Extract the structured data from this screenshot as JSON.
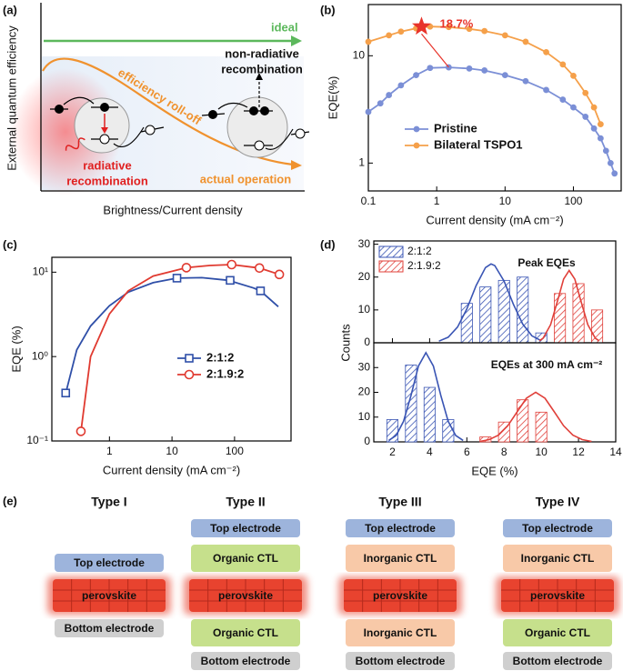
{
  "diagram_a": {
    "panel": "(a)",
    "y_label": "External quantum efficiency",
    "x_label": "Brightness/Current density",
    "ideal": "ideal",
    "roll_off": "efficiency roll-off",
    "actual_operation": "actual operation",
    "radiative": [
      "radiative",
      "recombination"
    ],
    "non_radiative": [
      "non-radiative",
      "recombination"
    ]
  },
  "chart_data": [
    {
      "panel": "(b)",
      "type": "line",
      "xscale": "log",
      "yscale": "log",
      "xlim": [
        0.1,
        500
      ],
      "ylim": [
        0.55,
        30
      ],
      "xticks": [
        0.1,
        1,
        10,
        100
      ],
      "yticks": [
        1,
        10
      ],
      "xlabel": "Current density (mA cm⁻²)",
      "ylabel": "EQE(%)",
      "legend": "lower left",
      "open_markers": false,
      "series": [
        {
          "name": "Pristine",
          "color": "#7b8fd6",
          "marker": "circle",
          "x": [
            0.1,
            0.15,
            0.2,
            0.3,
            0.5,
            0.8,
            1.5,
            3,
            5,
            10,
            20,
            40,
            70,
            100,
            150,
            200,
            250,
            300,
            350,
            400
          ],
          "values": [
            3.0,
            3.6,
            4.3,
            5.3,
            6.6,
            7.7,
            7.8,
            7.6,
            7.3,
            6.6,
            5.8,
            4.8,
            3.9,
            3.3,
            2.7,
            2.1,
            1.7,
            1.3,
            1.0,
            0.8
          ]
        },
        {
          "name": "Bilateral TSPO1",
          "color": "#f5a04a",
          "marker": "circle",
          "x": [
            0.1,
            0.2,
            0.3,
            0.5,
            0.8,
            1.5,
            3,
            5,
            10,
            20,
            40,
            70,
            100,
            150,
            200,
            250
          ],
          "values": [
            13.5,
            15.5,
            16.8,
            18,
            18.7,
            18.5,
            17.8,
            17,
            15.5,
            13.5,
            10.8,
            8.3,
            6.5,
            4.5,
            3.3,
            2.3
          ]
        }
      ],
      "annotation": {
        "x": 0.6,
        "value": 18.7,
        "label": "18.7%",
        "color": "#e8332a"
      }
    },
    {
      "panel": "(c)",
      "type": "line",
      "xscale": "log",
      "yscale": "log",
      "xlim": [
        0.12,
        800
      ],
      "ylim": [
        0.1,
        15
      ],
      "xticks": [
        1,
        10,
        100
      ],
      "yticks": [
        {
          "value": 0.1,
          "label": "10⁻¹"
        },
        {
          "value": 1,
          "label": "10⁰"
        },
        {
          "value": 10,
          "label": "10¹"
        }
      ],
      "xlabel": "Current density (mA cm⁻²)",
      "ylabel": "EQE (%)",
      "legend": "center right",
      "open_markers": true,
      "series": [
        {
          "name": "2:1:2",
          "color": "#2f4fa8",
          "marker": "square",
          "x": [
            0.2,
            0.3,
            0.5,
            1,
            2,
            5,
            12,
            30,
            80,
            200,
            260,
            500
          ],
          "values": [
            0.37,
            1.2,
            2.3,
            4.0,
            5.8,
            7.5,
            8.5,
            8.6,
            8.0,
            6.5,
            6.0,
            3.9
          ],
          "marker_x": [
            0.2,
            12,
            85,
            260
          ],
          "marker_values": [
            0.37,
            8.5,
            8.0,
            6.0
          ]
        },
        {
          "name": "2:1.9:2",
          "color": "#e03a30",
          "marker": "circle",
          "x": [
            0.35,
            0.5,
            1,
            2,
            5,
            17,
            40,
            90,
            250,
            520
          ],
          "values": [
            0.13,
            1.0,
            3.2,
            6.0,
            9.0,
            11.3,
            12.0,
            12.3,
            11.2,
            9.4
          ],
          "marker_x": [
            0.35,
            17,
            90,
            250,
            520
          ],
          "marker_values": [
            0.13,
            11.3,
            12.3,
            11.2,
            9.4
          ]
        }
      ]
    },
    {
      "panel": "(d)",
      "type": "histogram",
      "xlim": [
        1,
        14
      ],
      "ylim": [
        0,
        31
      ],
      "yticks": [
        0,
        10,
        20,
        30
      ],
      "ylabel": "Counts",
      "title": "Peak EQEs",
      "legend": "upper left",
      "series": [
        {
          "name": "2:1:2",
          "color": "#3a55b4",
          "bins": [
            5.5,
            6.5,
            7.5,
            8.5,
            9.5,
            10.5
          ],
          "values": [
            12,
            17,
            19,
            20,
            3
          ],
          "fit": {
            "x": [
              4.5,
              5,
              5.5,
              6,
              6.5,
              7,
              7.3,
              7.5,
              8,
              8.5,
              9,
              9.5,
              10
            ],
            "values": [
              0.5,
              1.7,
              4.8,
              10.3,
              17.4,
              22.9,
              24,
              23.5,
              18.8,
              11.7,
              5.7,
              2.1,
              0.6
            ]
          }
        },
        {
          "name": "2:1.9:2",
          "color": "#e0403a",
          "bins": [
            10.5,
            11.5,
            12.5,
            13.5
          ],
          "values": [
            15,
            18,
            10
          ],
          "fit": {
            "x": [
              9.9,
              10.1,
              10.5,
              10.9,
              11.2,
              11.5,
              11.8,
              12.1,
              12.5,
              12.9,
              13.1
            ],
            "values": [
              0.6,
              1.4,
              5.5,
              13.3,
              19.4,
              22,
              19.4,
              13.3,
              5.5,
              1.4,
              0.6
            ]
          }
        }
      ]
    },
    {
      "type": "histogram",
      "xlim": [
        1,
        14
      ],
      "ylim": [
        0,
        40
      ],
      "xticks": [
        2,
        4,
        6,
        8,
        10,
        12,
        14
      ],
      "yticks": [
        0,
        10,
        20,
        30
      ],
      "xlabel": "EQE (%)",
      "title": "EQEs at 300 mA cm⁻²",
      "series": [
        {
          "color": "#3a55b4",
          "bins": [
            1.5,
            2.5,
            3.5,
            4.5,
            5.5
          ],
          "values": [
            9,
            31,
            22,
            9
          ],
          "fit": {
            "x": [
              1.8,
              2.2,
              2.6,
              3,
              3.4,
              3.8,
              4.2,
              4.6,
              5,
              5.4,
              5.8
            ],
            "values": [
              0.6,
              2.6,
              8.3,
              18.7,
              30.6,
              36,
              30.6,
              18.7,
              8.3,
              2.6,
              0.6
            ]
          }
        },
        {
          "color": "#e0403a",
          "bins": [
            6.5,
            7.5,
            8.5,
            9.5,
            10.5
          ],
          "values": [
            2,
            8,
            17,
            12
          ],
          "fit": {
            "x": [
              6.7,
              7.2,
              7.7,
              8.2,
              8.7,
              9.2,
              9.7,
              10.2,
              10.7,
              11.2,
              11.7,
              12.2,
              12.7
            ],
            "values": [
              0.2,
              0.9,
              2.7,
              6.5,
              12.1,
              17.6,
              20,
              17.6,
              12.1,
              6.5,
              2.7,
              0.9,
              0.2
            ]
          }
        }
      ]
    }
  ],
  "diagram_e": {
    "panel": "(e)",
    "types": [
      {
        "name": "Type I",
        "layers": [
          {
            "text": "Top electrode",
            "color": "#9db4dc"
          },
          {
            "text": "perovskite",
            "color": "#e8432f"
          },
          {
            "text": "Bottom electrode",
            "color": "#cfcfcf"
          }
        ]
      },
      {
        "name": "Type II",
        "layers": [
          {
            "text": "Top electrode",
            "color": "#9db4dc"
          },
          {
            "text": "Organic CTL",
            "color": "#c6e08c"
          },
          {
            "text": "perovskite",
            "color": "#e8432f"
          },
          {
            "text": "Organic CTL",
            "color": "#c6e08c"
          },
          {
            "text": "Bottom electrode",
            "color": "#cfcfcf"
          }
        ]
      },
      {
        "name": "Type III",
        "layers": [
          {
            "text": "Top electrode",
            "color": "#9db4dc"
          },
          {
            "text": "Inorganic CTL",
            "color": "#f8c9a8"
          },
          {
            "text": "perovskite",
            "color": "#e8432f"
          },
          {
            "text": "Inorganic CTL",
            "color": "#f8c9a8"
          },
          {
            "text": "Bottom electrode",
            "color": "#cfcfcf"
          }
        ]
      },
      {
        "name": "Type IV",
        "layers": [
          {
            "text": "Top electrode",
            "color": "#9db4dc"
          },
          {
            "text": "Inorganic CTL",
            "color": "#f8c9a8"
          },
          {
            "text": "perovskite",
            "color": "#e8432f"
          },
          {
            "text": "Organic CTL",
            "color": "#c6e08c"
          },
          {
            "text": "Bottom electrode",
            "color": "#cfcfcf"
          }
        ]
      }
    ]
  }
}
